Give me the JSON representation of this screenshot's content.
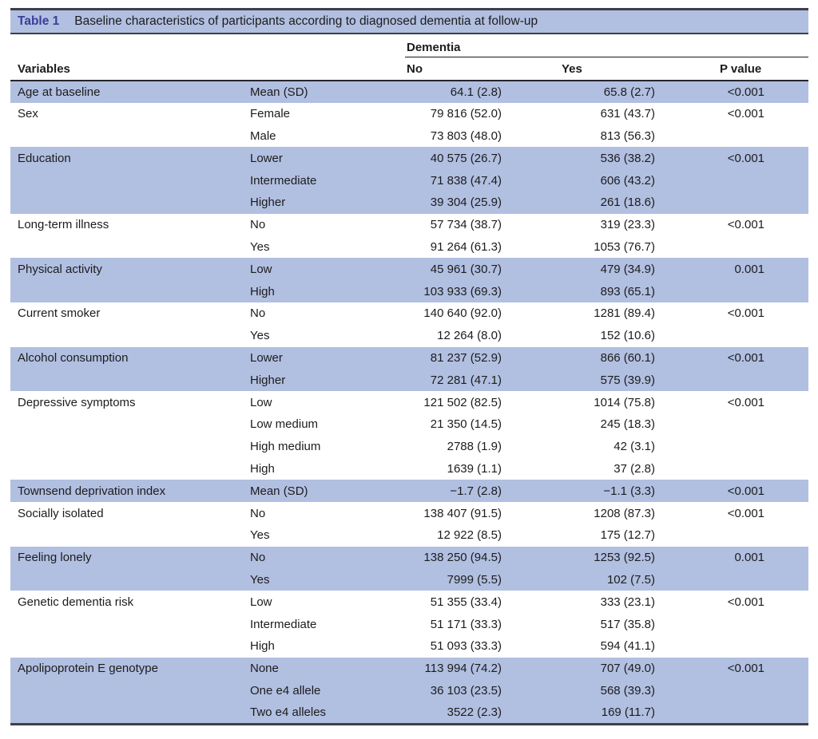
{
  "caption": {
    "label": "Table 1",
    "text": "Baseline characteristics of participants according to diagnosed dementia at follow-up"
  },
  "header": {
    "group": "Dementia",
    "columns": [
      "Variables",
      "No",
      "Yes",
      "P value"
    ]
  },
  "colors": {
    "stripe": "#b1bfe1",
    "caption_label": "#3d3d99",
    "border_dark": "#3f3f4a",
    "rule_thin": "#1a1a1a",
    "rule_heavy": "#26262c",
    "text": "#1c1c1c"
  },
  "groups": [
    {
      "variable": "Age at baseline",
      "shaded": true,
      "rows": [
        {
          "category": "Mean (SD)",
          "no": "64.1 (2.8)",
          "yes": "65.8 (2.7)",
          "p": "<0.001"
        }
      ]
    },
    {
      "variable": "Sex",
      "shaded": false,
      "rows": [
        {
          "category": "Female",
          "no": "79 816 (52.0)",
          "yes": "631 (43.7)",
          "p": "<0.001"
        },
        {
          "category": "Male",
          "no": "73 803 (48.0)",
          "yes": "813 (56.3)",
          "p": ""
        }
      ]
    },
    {
      "variable": "Education",
      "shaded": true,
      "rows": [
        {
          "category": "Lower",
          "no": "40 575 (26.7)",
          "yes": "536 (38.2)",
          "p": "<0.001"
        },
        {
          "category": "Intermediate",
          "no": "71 838 (47.4)",
          "yes": "606 (43.2)",
          "p": ""
        },
        {
          "category": "Higher",
          "no": "39 304 (25.9)",
          "yes": "261 (18.6)",
          "p": ""
        }
      ]
    },
    {
      "variable": "Long-term illness",
      "shaded": false,
      "rows": [
        {
          "category": "No",
          "no": "57 734 (38.7)",
          "yes": "319 (23.3)",
          "p": "<0.001"
        },
        {
          "category": "Yes",
          "no": "91 264 (61.3)",
          "yes": "1053 (76.7)",
          "p": ""
        }
      ]
    },
    {
      "variable": "Physical activity",
      "shaded": true,
      "rows": [
        {
          "category": "Low",
          "no": "45 961 (30.7)",
          "yes": "479 (34.9)",
          "p": "0.001"
        },
        {
          "category": "High",
          "no": "103 933 (69.3)",
          "yes": "893 (65.1)",
          "p": ""
        }
      ]
    },
    {
      "variable": "Current smoker",
      "shaded": false,
      "rows": [
        {
          "category": "No",
          "no": "140 640 (92.0)",
          "yes": "1281 (89.4)",
          "p": "<0.001"
        },
        {
          "category": "Yes",
          "no": "12 264 (8.0)",
          "yes": "152 (10.6)",
          "p": ""
        }
      ]
    },
    {
      "variable": "Alcohol consumption",
      "shaded": true,
      "rows": [
        {
          "category": "Lower",
          "no": "81 237 (52.9)",
          "yes": "866 (60.1)",
          "p": "<0.001"
        },
        {
          "category": "Higher",
          "no": "72 281 (47.1)",
          "yes": "575 (39.9)",
          "p": ""
        }
      ]
    },
    {
      "variable": "Depressive symptoms",
      "shaded": false,
      "rows": [
        {
          "category": "Low",
          "no": "121 502 (82.5)",
          "yes": "1014 (75.8)",
          "p": "<0.001"
        },
        {
          "category": "Low medium",
          "no": "21 350 (14.5)",
          "yes": "245 (18.3)",
          "p": ""
        },
        {
          "category": "High medium",
          "no": "2788 (1.9)",
          "yes": "42 (3.1)",
          "p": ""
        },
        {
          "category": "High",
          "no": "1639 (1.1)",
          "yes": "37 (2.8)",
          "p": ""
        }
      ]
    },
    {
      "variable": "Townsend deprivation index",
      "shaded": true,
      "rows": [
        {
          "category": "Mean (SD)",
          "no": "−1.7 (2.8)",
          "yes": "−1.1 (3.3)",
          "p": "<0.001"
        }
      ]
    },
    {
      "variable": "Socially isolated",
      "shaded": false,
      "rows": [
        {
          "category": "No",
          "no": "138 407 (91.5)",
          "yes": "1208 (87.3)",
          "p": "<0.001"
        },
        {
          "category": "Yes",
          "no": "12 922 (8.5)",
          "yes": "175 (12.7)",
          "p": ""
        }
      ]
    },
    {
      "variable": "Feeling lonely",
      "shaded": true,
      "rows": [
        {
          "category": "No",
          "no": "138 250 (94.5)",
          "yes": "1253 (92.5)",
          "p": "0.001"
        },
        {
          "category": "Yes",
          "no": "7999 (5.5)",
          "yes": "102 (7.5)",
          "p": ""
        }
      ]
    },
    {
      "variable": "Genetic dementia risk",
      "shaded": false,
      "rows": [
        {
          "category": "Low",
          "no": "51 355 (33.4)",
          "yes": "333 (23.1)",
          "p": "<0.001"
        },
        {
          "category": "Intermediate",
          "no": "51 171 (33.3)",
          "yes": "517 (35.8)",
          "p": ""
        },
        {
          "category": "High",
          "no": "51 093 (33.3)",
          "yes": "594 (41.1)",
          "p": ""
        }
      ]
    },
    {
      "variable": "Apolipoprotein E genotype",
      "shaded": true,
      "rows": [
        {
          "category": "None",
          "no": "113 994 (74.2)",
          "yes": "707 (49.0)",
          "p": "<0.001"
        },
        {
          "category": "One e4 allele",
          "no": "36 103 (23.5)",
          "yes": "568 (39.3)",
          "p": ""
        },
        {
          "category": "Two e4 alleles",
          "no": "3522 (2.3)",
          "yes": "169 (11.7)",
          "p": ""
        }
      ]
    }
  ]
}
